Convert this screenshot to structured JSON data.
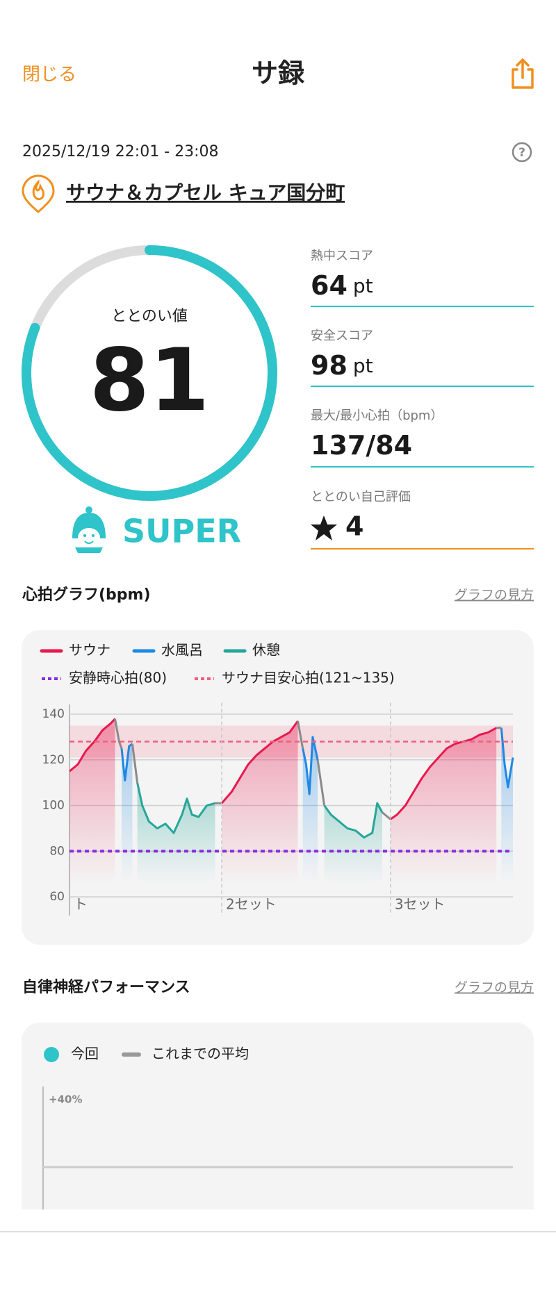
{
  "header": {
    "close": "閉じる",
    "title": "サ録"
  },
  "session": {
    "datetime": "2025/12/19 22:01 - 23:08",
    "facility": "サウナ＆カプセル キュア国分町"
  },
  "totonoi": {
    "label": "ととのい値",
    "value": 81,
    "range": [
      0,
      100
    ],
    "rank": "SUPER"
  },
  "scores": [
    {
      "label": "熱中スコア",
      "value": 64,
      "unit": "pt"
    },
    {
      "label": "安全スコア",
      "value": 98,
      "unit": "pt"
    }
  ],
  "heart_rate_stat": {
    "label": "最大/最小心拍（bpm）",
    "max": 137,
    "separator": "/",
    "min": 84
  },
  "self_rating": {
    "label": "ととのい自己評価",
    "value": 4
  },
  "heart_section": {
    "title": "心拍グラフ(bpm)",
    "link": "グラフの見方"
  },
  "autonomic_section": {
    "title": "自律神経パフォーマンス",
    "link": "グラフの見方"
  },
  "chart_data": [
    {
      "type": "line",
      "x": [
        0,
        10,
        20,
        30,
        40,
        50,
        55,
        60,
        63,
        67,
        72,
        76,
        82,
        88,
        96,
        106,
        116,
        126,
        136,
        142,
        148,
        156,
        166,
        176,
        184,
        196,
        206,
        216,
        226,
        236,
        246,
        256,
        266,
        276,
        282,
        286,
        290,
        294,
        300,
        308,
        316,
        326,
        336,
        346,
        356,
        366,
        372,
        378,
        388,
        396,
        406,
        416,
        426,
        436,
        446,
        456,
        466,
        476,
        486,
        496,
        506,
        516,
        522,
        526,
        530,
        536
      ],
      "xlim": [
        0,
        536
      ],
      "ylim": [
        60,
        145
      ],
      "yticks": [
        60,
        80,
        100,
        120,
        140
      ],
      "grid": true,
      "series": [
        {
          "name": "サウナ",
          "color": "#e8194e",
          "fill": true,
          "values": [
            115,
            118,
            124,
            128,
            133,
            136,
            138,
            null,
            null,
            null,
            null,
            null,
            null,
            null,
            null,
            null,
            null,
            null,
            null,
            null,
            null,
            null,
            null,
            null,
            101,
            106,
            112,
            118,
            122,
            125,
            128,
            130,
            132,
            137,
            null,
            null,
            null,
            null,
            null,
            null,
            null,
            null,
            null,
            null,
            null,
            null,
            null,
            null,
            94,
            96,
            100,
            106,
            112,
            117,
            121,
            125,
            127,
            128,
            129,
            131,
            132,
            134,
            null,
            null,
            null,
            null
          ]
        },
        {
          "name": "水風呂",
          "color": "#1e88e5",
          "fill": true,
          "values": [
            null,
            null,
            null,
            null,
            null,
            null,
            null,
            null,
            125,
            111,
            126,
            127,
            null,
            null,
            null,
            null,
            null,
            null,
            null,
            null,
            null,
            null,
            null,
            null,
            null,
            null,
            null,
            null,
            null,
            null,
            null,
            null,
            null,
            null,
            125,
            118,
            105,
            130,
            120,
            null,
            null,
            null,
            null,
            null,
            null,
            null,
            null,
            null,
            null,
            null,
            null,
            null,
            null,
            null,
            null,
            null,
            null,
            null,
            null,
            null,
            null,
            null,
            134,
            118,
            108,
            121
          ]
        },
        {
          "name": "休憩",
          "color": "#26a69a",
          "fill": true,
          "values": [
            null,
            null,
            null,
            null,
            null,
            null,
            null,
            null,
            null,
            null,
            null,
            null,
            110,
            100,
            93,
            90,
            92,
            88,
            96,
            103,
            96,
            95,
            100,
            101,
            null,
            null,
            null,
            null,
            null,
            null,
            null,
            null,
            null,
            null,
            null,
            null,
            null,
            null,
            null,
            100,
            96,
            93,
            90,
            89,
            86,
            88,
            101,
            97,
            null,
            null,
            null,
            null,
            null,
            null,
            null,
            null,
            null,
            null,
            null,
            null,
            null,
            null,
            null,
            null,
            null,
            null
          ]
        },
        {
          "color": "#8a8a8a",
          "fill": false,
          "values": [
            null,
            null,
            null,
            null,
            null,
            null,
            138,
            128,
            125,
            null,
            null,
            127,
            110,
            null,
            null,
            null,
            null,
            null,
            null,
            null,
            null,
            null,
            null,
            101,
            101,
            null,
            null,
            null,
            null,
            null,
            null,
            null,
            null,
            137,
            125,
            null,
            null,
            null,
            120,
            100,
            null,
            null,
            null,
            null,
            null,
            null,
            null,
            97,
            94,
            null,
            null,
            null,
            null,
            null,
            null,
            null,
            null,
            null,
            null,
            null,
            null,
            134,
            134,
            null,
            null,
            null
          ]
        }
      ],
      "reference_line": {
        "name": "安静時心拍(80)",
        "color": "#8a2be2",
        "value": 80
      },
      "target_band": {
        "name": "サウナ目安心拍(121~135)",
        "color": "#f0607e",
        "low": 121,
        "high": 135
      },
      "set_labels": [
        {
          "x": 0,
          "label": "ト"
        },
        {
          "x": 184,
          "label": "2セット"
        },
        {
          "x": 388,
          "label": "3セット"
        }
      ]
    },
    {
      "type": "line",
      "ylim": [
        -40,
        40
      ],
      "yticks": [
        {
          "value": 40,
          "label": "+40%"
        }
      ],
      "series": [
        {
          "name": "今回",
          "color": "#2ec4c9",
          "values": []
        },
        {
          "name": "これまでの平均",
          "color": "#999999",
          "values": []
        }
      ]
    }
  ]
}
